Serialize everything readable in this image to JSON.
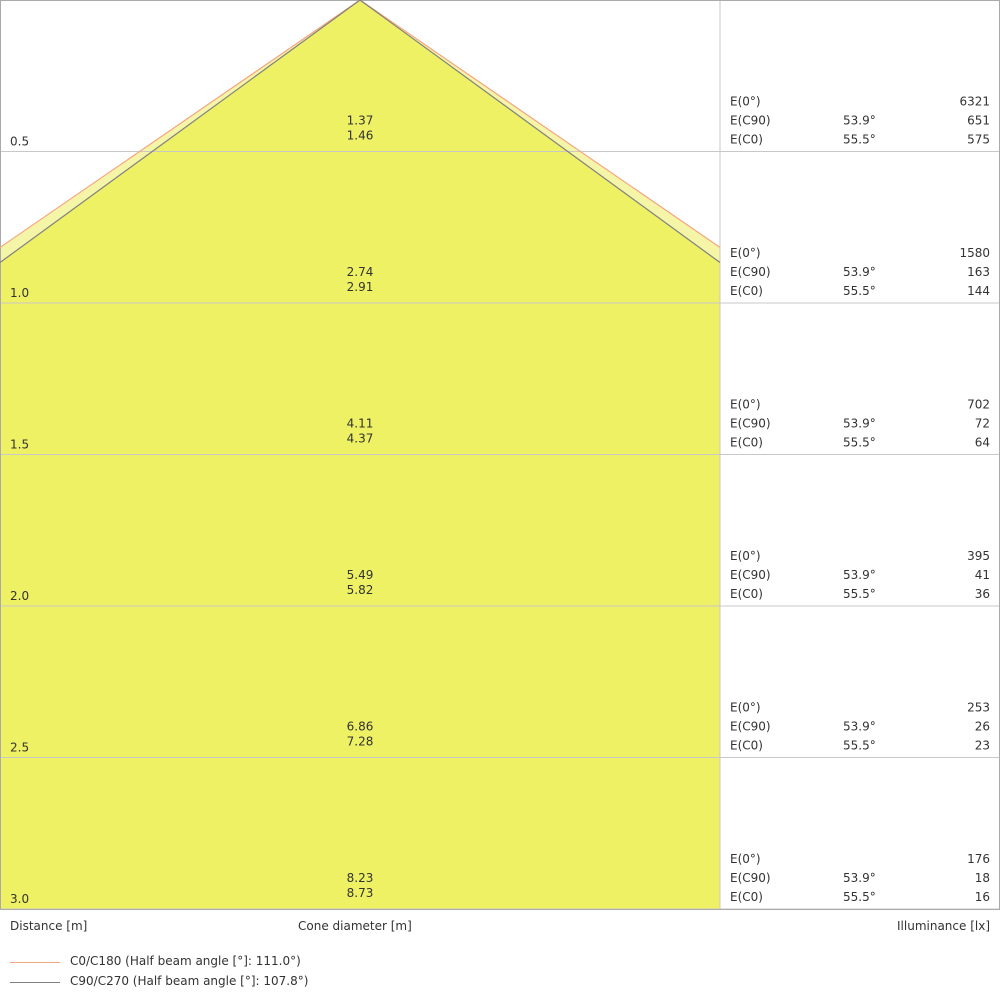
{
  "chart_data": {
    "type": "cone-diagram",
    "xlabel": "Cone diameter [m]",
    "ylabel": "Distance [m]",
    "right_label": "Illuminance [lx]",
    "row_labels": [
      "E(0°)",
      "E(C90)",
      "E(C0)"
    ],
    "half_angle_c90": "53.9°",
    "half_angle_c0": "55.5°",
    "c90_half_angle_deg": 53.9,
    "c0_half_angle_deg": 55.5,
    "colors": {
      "cone_fill": "#eff165",
      "outer_band": "#f5f5a8",
      "c0_line": "#f4a582",
      "c90_line": "#808080",
      "grid": "#c8c8c8"
    },
    "rows": [
      {
        "distance": "0.5",
        "d1": "1.37",
        "d2": "1.46",
        "e0": "6321",
        "ec90": "651",
        "ec0": "575"
      },
      {
        "distance": "1.0",
        "d1": "2.74",
        "d2": "2.91",
        "e0": "1580",
        "ec90": "163",
        "ec0": "144"
      },
      {
        "distance": "1.5",
        "d1": "4.11",
        "d2": "4.37",
        "e0": "702",
        "ec90": "72",
        "ec0": "64"
      },
      {
        "distance": "2.0",
        "d1": "5.49",
        "d2": "5.82",
        "e0": "395",
        "ec90": "41",
        "ec0": "36"
      },
      {
        "distance": "2.5",
        "d1": "6.86",
        "d2": "7.28",
        "e0": "253",
        "ec90": "26",
        "ec0": "23"
      },
      {
        "distance": "3.0",
        "d1": "8.23",
        "d2": "8.73",
        "e0": "176",
        "ec90": "18",
        "ec0": "16"
      }
    ],
    "legend": [
      {
        "name": "C0/C180 (Half beam angle [°]: 111.0°)",
        "color": "#f4a582"
      },
      {
        "name": "C90/C270 (Half beam angle [°]: 107.8°)",
        "color": "#808080"
      }
    ]
  }
}
